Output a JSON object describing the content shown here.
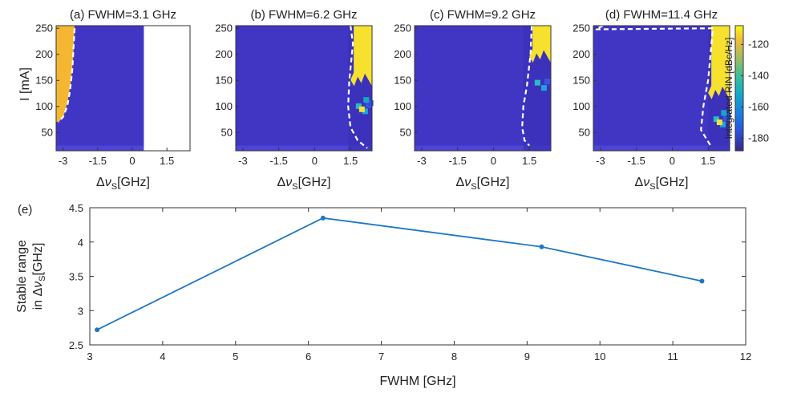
{
  "chart_data": [
    {
      "type": "heatmap",
      "panel": "a",
      "title": "(a) FWHM=3.1 GHz",
      "xlabel": "Δν_S [GHz]",
      "ylabel": "I [mA]",
      "xticks": [
        "-3",
        "-1.5",
        "0",
        "1.5"
      ],
      "yticks": [
        "50",
        "100",
        "150",
        "200",
        "250"
      ],
      "xlim": [
        -3.3,
        2.5
      ],
      "ylim": [
        15,
        255
      ],
      "background_level_dBcHz": -185,
      "unstable_region": {
        "color": "#f5b731",
        "level_dBcHz": -115,
        "x_start": -3.3,
        "x_end_at_top": -2.7,
        "x_end_at_bottom": -3.0,
        "y_bottom": 70
      },
      "no_data_region": {
        "x_start": 0.5,
        "x_end": 2.5,
        "color": "#ffffff"
      },
      "boundary": [
        [
          -2.5,
          250
        ],
        [
          -2.55,
          210
        ],
        [
          -2.6,
          170
        ],
        [
          -2.7,
          130
        ],
        [
          -2.82,
          100
        ],
        [
          -3.0,
          80
        ],
        [
          -3.2,
          70
        ]
      ]
    },
    {
      "type": "heatmap",
      "panel": "b",
      "title": "(b) FWHM=6.2 GHz",
      "xlabel": "Δν_S [GHz]",
      "yticks": [
        "50",
        "100",
        "150",
        "200",
        "250"
      ],
      "xticks": [
        "-3",
        "-1.5",
        "0",
        "1.5"
      ],
      "xlim": [
        -3.3,
        2.4
      ],
      "ylim": [
        15,
        255
      ],
      "background_level_dBcHz": -180,
      "unstable_region": {
        "color": "#f7e12f",
        "level_dBcHz": -112,
        "x_start": 1.5,
        "x_end": 2.4,
        "y_bottom": 145
      },
      "boundary": [
        [
          1.5,
          255
        ],
        [
          1.6,
          220
        ],
        [
          1.45,
          150
        ],
        [
          1.4,
          100
        ],
        [
          1.5,
          60
        ],
        [
          1.8,
          35
        ],
        [
          2.2,
          20
        ]
      ]
    },
    {
      "type": "heatmap",
      "panel": "c",
      "title": "(c) FWHM=9.2 GHz",
      "xlabel": "Δν_S [GHz]",
      "yticks": [
        "50",
        "100",
        "150",
        "200",
        "250"
      ],
      "xticks": [
        "-3",
        "-1.5",
        "0",
        "1.5"
      ],
      "xlim": [
        -3.3,
        2.4
      ],
      "ylim": [
        15,
        255
      ],
      "background_level_dBcHz": -180,
      "unstable_region": {
        "color": "#f7e12f",
        "level_dBcHz": -112,
        "x_start": 1.5,
        "x_end": 2.4,
        "y_bottom": 190
      },
      "boundary": [
        [
          1.6,
          255
        ],
        [
          1.55,
          200
        ],
        [
          1.4,
          140
        ],
        [
          1.25,
          100
        ],
        [
          1.2,
          60
        ],
        [
          1.3,
          35
        ],
        [
          1.5,
          25
        ]
      ]
    },
    {
      "type": "heatmap",
      "panel": "d",
      "title": "(d) FWHM=11.4 GHz",
      "xlabel": "Δν_S [GHz]",
      "yticks": [
        "50",
        "100",
        "150",
        "200",
        "250"
      ],
      "xticks": [
        "-3",
        "-1.5",
        "0",
        "1.5"
      ],
      "xlim": [
        -3.3,
        2.4
      ],
      "ylim": [
        15,
        255
      ],
      "background_level_dBcHz": -180,
      "unstable_region": {
        "color": "#f7e12f",
        "level_dBcHz": -112,
        "x_start": 1.5,
        "x_end": 2.4,
        "y_bottom": 120
      },
      "boundary": [
        [
          -2.9,
          255
        ],
        [
          -3.2,
          248
        ],
        [
          1.7,
          250
        ],
        [
          1.5,
          150
        ],
        [
          1.3,
          100
        ],
        [
          1.2,
          55
        ],
        [
          1.6,
          25
        ]
      ],
      "colorbar": {
        "label": "Integrated RIN [dBc/Hz]",
        "ticks": [
          "-120",
          "-140",
          "-160",
          "-180"
        ],
        "range": [
          -188,
          -108
        ]
      }
    },
    {
      "type": "line",
      "panel": "e",
      "title": "(e)",
      "xlabel": "FWHM [GHz]",
      "ylabel": "Stable range in Δν_S [GHz]",
      "x": [
        3.1,
        6.2,
        9.2,
        11.4
      ],
      "values": [
        2.72,
        4.35,
        3.93,
        3.43
      ],
      "xlim": [
        3,
        12
      ],
      "ylim": [
        2.5,
        4.5
      ],
      "xticks": [
        "3",
        "4",
        "5",
        "6",
        "7",
        "8",
        "9",
        "10",
        "11",
        "12"
      ],
      "yticks": [
        "2.5",
        "3",
        "3.5",
        "4",
        "4.5"
      ],
      "color": "#1f77c4",
      "grid": false
    }
  ],
  "labels": {
    "delta": "Δ",
    "nu": "ν",
    "sub_s": "S",
    "unit": "[GHz]",
    "i_ma": "I [mA]",
    "ylabel_e_1": "Stable range",
    "ylabel_e_2a": "in Δ",
    "ylabel_e_2b": "[GHz]",
    "xlabel_e": "FWHM [GHz]"
  },
  "colors": {
    "blue_dark": "#3b2ea8",
    "blue_mid": "#4136c4",
    "yellow": "#f7e12f",
    "orange": "#f5b731",
    "boundary": "#ffffff",
    "line": "#1f77c4"
  }
}
